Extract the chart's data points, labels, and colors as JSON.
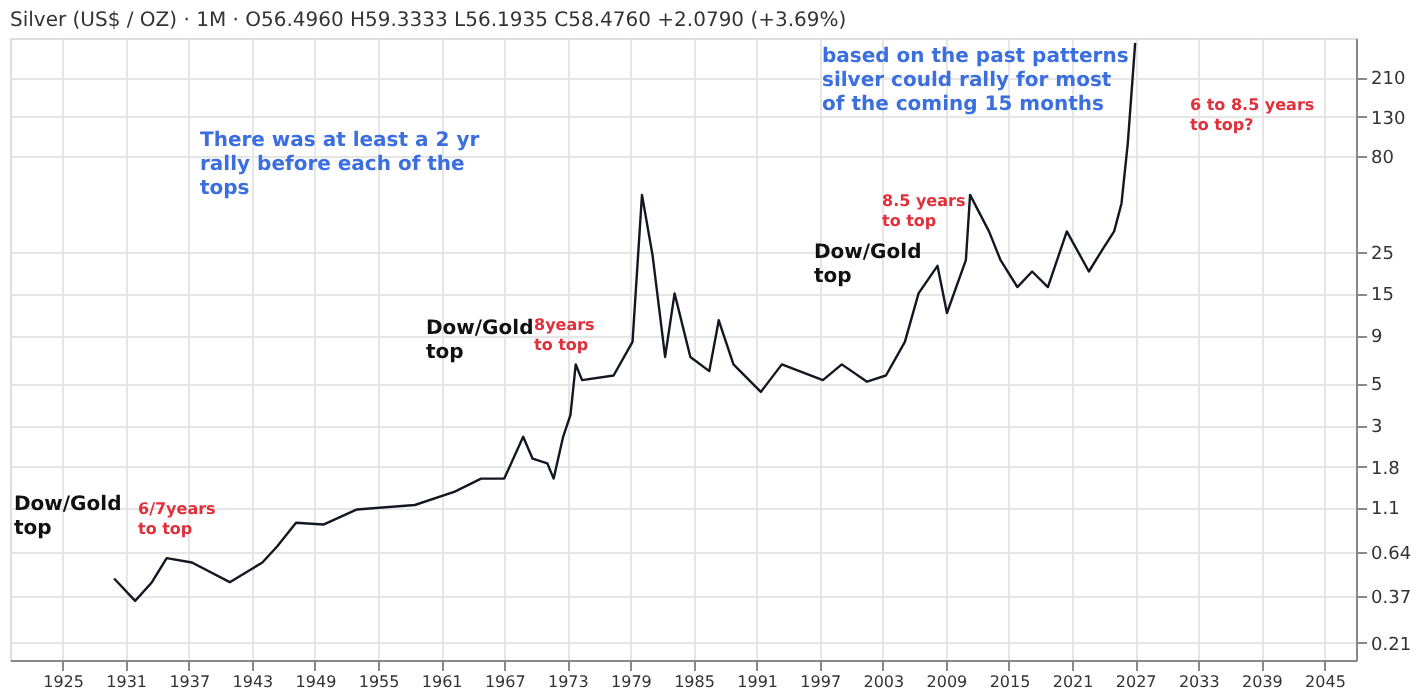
{
  "chart_data": {
    "type": "line",
    "title": "Silver (US$ / OZ) · 1M · O56.4960 H59.3333 L56.1935 C58.4760 +2.0790 (+3.69%)",
    "x": [
      1929.9,
      1931.9,
      1933.5,
      1934.9,
      1937.3,
      1940.9,
      1944.0,
      1945.4,
      1947.2,
      1949.8,
      1953.0,
      1958.5,
      1962.3,
      1964.8,
      1967.0,
      1968.8,
      1969.7,
      1971.1,
      1971.7,
      1972.6,
      1973.3,
      1973.8,
      1974.4,
      1977.4,
      1979.2,
      1980.1,
      1981.1,
      1982.3,
      1983.2,
      1984.7,
      1986.5,
      1987.4,
      1988.8,
      1991.4,
      1993.4,
      1997.3,
      1999.1,
      2001.5,
      2003.3,
      2005.1,
      2006.4,
      2008.2,
      2009.1,
      2010.9,
      2011.3,
      2013.1,
      2014.2,
      2015.8,
      2017.2,
      2018.7,
      2020.5,
      2022.6,
      2023.9,
      2025.0,
      2025.7,
      2026.3,
      2027.0
    ],
    "series": [
      {
        "color": "#131722",
        "values": [
          0.46,
          0.35,
          0.44,
          0.59,
          0.56,
          0.44,
          0.56,
          0.68,
          0.91,
          0.89,
          1.07,
          1.13,
          1.33,
          1.56,
          1.56,
          2.6,
          1.99,
          1.88,
          1.56,
          2.6,
          3.4,
          6.3,
          5.2,
          5.5,
          8.3,
          50,
          24,
          6.9,
          15,
          6.9,
          5.8,
          10.8,
          6.3,
          4.5,
          6.3,
          5.2,
          6.3,
          5.1,
          5.5,
          8.3,
          15,
          21,
          11.8,
          22.5,
          50,
          32,
          22.5,
          16.2,
          19.6,
          16.2,
          32,
          19.6,
          25.7,
          32,
          45,
          94,
          320
        ]
      }
    ],
    "log": "y",
    "xlim": [
      1920,
      2048
    ],
    "xticks": [
      1925,
      1931,
      1937,
      1943,
      1949,
      1955,
      1961,
      1967,
      1973,
      1979,
      1985,
      1991,
      1997,
      2003,
      2009,
      2015,
      2021,
      2027,
      2033,
      2039,
      2045
    ],
    "ylim": [
      0.17,
      340
    ],
    "yticks": [
      0.21,
      0.37,
      0.64,
      1.1,
      1.8,
      3,
      5,
      9,
      15,
      25,
      80,
      130,
      210
    ],
    "grid": true,
    "marker": "none",
    "line_style": "solid",
    "annotations": [
      "Dow/Gold\ntop",
      "Dow/Gold\ntop",
      "Dow/Gold\ntop",
      "6/7years\nto top",
      "8years\nto top",
      "8.5 years\nto top",
      "6 to 8.5 years\nto top?",
      "There was at least a 2 yr\nrally before each of the\ntops",
      "based on the past patterns\nsilver could rally for most\nof the coming 15 months"
    ]
  }
}
